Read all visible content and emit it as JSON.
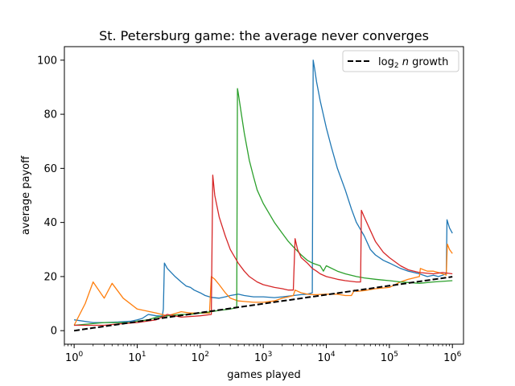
{
  "chart_data": {
    "type": "line",
    "title": "St. Petersburg game: the average never converges",
    "xlabel": "games played",
    "ylabel": "average payoff",
    "xscale": "log",
    "xlim": [
      0.7,
      1500000
    ],
    "ylim": [
      -5,
      105
    ],
    "x_ticks": [
      1,
      10,
      100,
      1000,
      10000,
      100000,
      1000000
    ],
    "x_tick_labels": [
      {
        "base": "10",
        "exp": "0"
      },
      {
        "base": "10",
        "exp": "1"
      },
      {
        "base": "10",
        "exp": "2"
      },
      {
        "base": "10",
        "exp": "3"
      },
      {
        "base": "10",
        "exp": "4"
      },
      {
        "base": "10",
        "exp": "5"
      },
      {
        "base": "10",
        "exp": "6"
      }
    ],
    "y_ticks": [
      0,
      20,
      40,
      60,
      80,
      100
    ],
    "y_tick_labels": [
      "0",
      "20",
      "40",
      "60",
      "80",
      "100"
    ],
    "grid": false,
    "legend": {
      "placement": "top-right",
      "entries": [
        {
          "label_main": "log",
          "label_sub": "2",
          "label_var": "n",
          "label_rest": "growth",
          "style": "dashed",
          "color": "#000000"
        }
      ]
    },
    "series": [
      {
        "color": "#1f77b4",
        "points": [
          [
            1,
            4
          ],
          [
            2,
            3
          ],
          [
            3,
            3
          ],
          [
            5,
            3.2
          ],
          [
            8,
            3.5
          ],
          [
            10,
            4
          ],
          [
            12,
            4.5
          ],
          [
            15,
            6
          ],
          [
            20,
            5.5
          ],
          [
            25,
            5.4
          ],
          [
            26,
            8
          ],
          [
            27,
            25
          ],
          [
            30,
            23
          ],
          [
            40,
            20
          ],
          [
            50,
            18
          ],
          [
            60,
            16.5
          ],
          [
            70,
            16
          ],
          [
            80,
            15
          ],
          [
            100,
            14
          ],
          [
            120,
            13
          ],
          [
            150,
            12.3
          ],
          [
            200,
            12
          ],
          [
            250,
            12.5
          ],
          [
            300,
            13
          ],
          [
            400,
            13.5
          ],
          [
            500,
            13
          ],
          [
            700,
            12.5
          ],
          [
            1000,
            12.5
          ],
          [
            1500,
            12.2
          ],
          [
            2000,
            12.5
          ],
          [
            3000,
            13
          ],
          [
            4000,
            13.3
          ],
          [
            5000,
            13.5
          ],
          [
            6000,
            14
          ],
          [
            6200,
            100
          ],
          [
            6500,
            97
          ],
          [
            7000,
            92
          ],
          [
            8000,
            85
          ],
          [
            10000,
            75
          ],
          [
            12000,
            68
          ],
          [
            15000,
            60
          ],
          [
            20000,
            52
          ],
          [
            25000,
            45
          ],
          [
            30000,
            40
          ],
          [
            40000,
            35
          ],
          [
            50000,
            30
          ],
          [
            60000,
            28
          ],
          [
            80000,
            26
          ],
          [
            100000,
            25
          ],
          [
            150000,
            23
          ],
          [
            200000,
            22
          ],
          [
            300000,
            21
          ],
          [
            400000,
            20
          ],
          [
            500000,
            20.5
          ],
          [
            600000,
            20
          ],
          [
            700000,
            20.5
          ],
          [
            800000,
            21
          ],
          [
            820000,
            41
          ],
          [
            900000,
            38
          ],
          [
            1000000,
            36
          ]
        ]
      },
      {
        "color": "#ff7f0e",
        "points": [
          [
            1,
            2
          ],
          [
            1.5,
            10
          ],
          [
            2,
            18
          ],
          [
            3,
            12
          ],
          [
            4,
            17.5
          ],
          [
            6,
            12
          ],
          [
            10,
            8
          ],
          [
            20,
            6.5
          ],
          [
            30,
            5.5
          ],
          [
            50,
            7
          ],
          [
            70,
            6.5
          ],
          [
            100,
            6.5
          ],
          [
            140,
            6.5
          ],
          [
            150,
            20
          ],
          [
            170,
            19
          ],
          [
            200,
            17
          ],
          [
            250,
            14
          ],
          [
            300,
            12
          ],
          [
            400,
            11
          ],
          [
            500,
            10.8
          ],
          [
            700,
            10.5
          ],
          [
            1000,
            10.5
          ],
          [
            1500,
            11
          ],
          [
            2000,
            12
          ],
          [
            2500,
            12.5
          ],
          [
            3000,
            13
          ],
          [
            3200,
            15
          ],
          [
            4000,
            14
          ],
          [
            5000,
            13.5
          ],
          [
            6000,
            13.3
          ],
          [
            7000,
            13.3
          ],
          [
            10000,
            13.5
          ],
          [
            15000,
            13.5
          ],
          [
            20000,
            13
          ],
          [
            25000,
            13
          ],
          [
            28000,
            15
          ],
          [
            30000,
            14.5
          ],
          [
            40000,
            14.8
          ],
          [
            60000,
            15.5
          ],
          [
            100000,
            16
          ],
          [
            150000,
            18
          ],
          [
            200000,
            19
          ],
          [
            300000,
            20
          ],
          [
            310000,
            23
          ],
          [
            350000,
            22.5
          ],
          [
            400000,
            22
          ],
          [
            500000,
            22
          ],
          [
            600000,
            21.5
          ],
          [
            700000,
            21
          ],
          [
            800000,
            20.5
          ],
          [
            830000,
            32
          ],
          [
            900000,
            30
          ],
          [
            1000000,
            28.5
          ]
        ]
      },
      {
        "color": "#2ca02c",
        "points": [
          [
            1,
            2
          ],
          [
            3,
            3
          ],
          [
            5,
            3
          ],
          [
            8,
            3
          ],
          [
            10,
            3.5
          ],
          [
            15,
            4
          ],
          [
            20,
            5
          ],
          [
            30,
            5.5
          ],
          [
            50,
            6
          ],
          [
            70,
            6
          ],
          [
            100,
            6.5
          ],
          [
            150,
            7
          ],
          [
            200,
            7.5
          ],
          [
            300,
            8
          ],
          [
            380,
            8.5
          ],
          [
            390,
            89.5
          ],
          [
            400,
            88
          ],
          [
            450,
            80
          ],
          [
            500,
            73
          ],
          [
            600,
            63
          ],
          [
            700,
            57
          ],
          [
            800,
            52
          ],
          [
            1000,
            47
          ],
          [
            1500,
            40
          ],
          [
            2000,
            36
          ],
          [
            2500,
            33
          ],
          [
            3000,
            31
          ],
          [
            4000,
            28
          ],
          [
            5000,
            26
          ],
          [
            6000,
            25
          ],
          [
            8000,
            24
          ],
          [
            9000,
            22
          ],
          [
            10000,
            24
          ],
          [
            15000,
            22
          ],
          [
            20000,
            21
          ],
          [
            30000,
            20
          ],
          [
            40000,
            19.5
          ],
          [
            60000,
            19
          ],
          [
            80000,
            18.7
          ],
          [
            100000,
            18.5
          ],
          [
            150000,
            18
          ],
          [
            200000,
            17.8
          ],
          [
            300000,
            17.5
          ],
          [
            500000,
            18
          ],
          [
            1000000,
            18.5
          ]
        ]
      },
      {
        "color": "#d62728",
        "points": [
          [
            1,
            2
          ],
          [
            3,
            2
          ],
          [
            5,
            2.5
          ],
          [
            10,
            3
          ],
          [
            20,
            4
          ],
          [
            30,
            6
          ],
          [
            50,
            5
          ],
          [
            100,
            5.5
          ],
          [
            150,
            6
          ],
          [
            158,
            57.5
          ],
          [
            170,
            50
          ],
          [
            200,
            42
          ],
          [
            250,
            35
          ],
          [
            300,
            30
          ],
          [
            400,
            25
          ],
          [
            500,
            22
          ],
          [
            600,
            20
          ],
          [
            800,
            18
          ],
          [
            1000,
            17
          ],
          [
            1500,
            16
          ],
          [
            2000,
            15.5
          ],
          [
            2500,
            15
          ],
          [
            3000,
            15
          ],
          [
            3200,
            34
          ],
          [
            3500,
            30
          ],
          [
            4000,
            27
          ],
          [
            5000,
            25
          ],
          [
            6000,
            23
          ],
          [
            7000,
            22
          ],
          [
            8000,
            21
          ],
          [
            10000,
            20
          ],
          [
            15000,
            19
          ],
          [
            20000,
            18.5
          ],
          [
            30000,
            18
          ],
          [
            35000,
            18
          ],
          [
            36000,
            44.5
          ],
          [
            40000,
            42
          ],
          [
            50000,
            37
          ],
          [
            60000,
            33
          ],
          [
            80000,
            29
          ],
          [
            100000,
            27
          ],
          [
            150000,
            24
          ],
          [
            200000,
            22.5
          ],
          [
            300000,
            21.5
          ],
          [
            500000,
            21
          ],
          [
            700000,
            21.5
          ],
          [
            1000000,
            21
          ]
        ]
      }
    ],
    "reference_line": {
      "style": "dashed",
      "color": "#000000",
      "function": "log2(n)",
      "x_range": [
        1,
        1000000
      ]
    }
  }
}
